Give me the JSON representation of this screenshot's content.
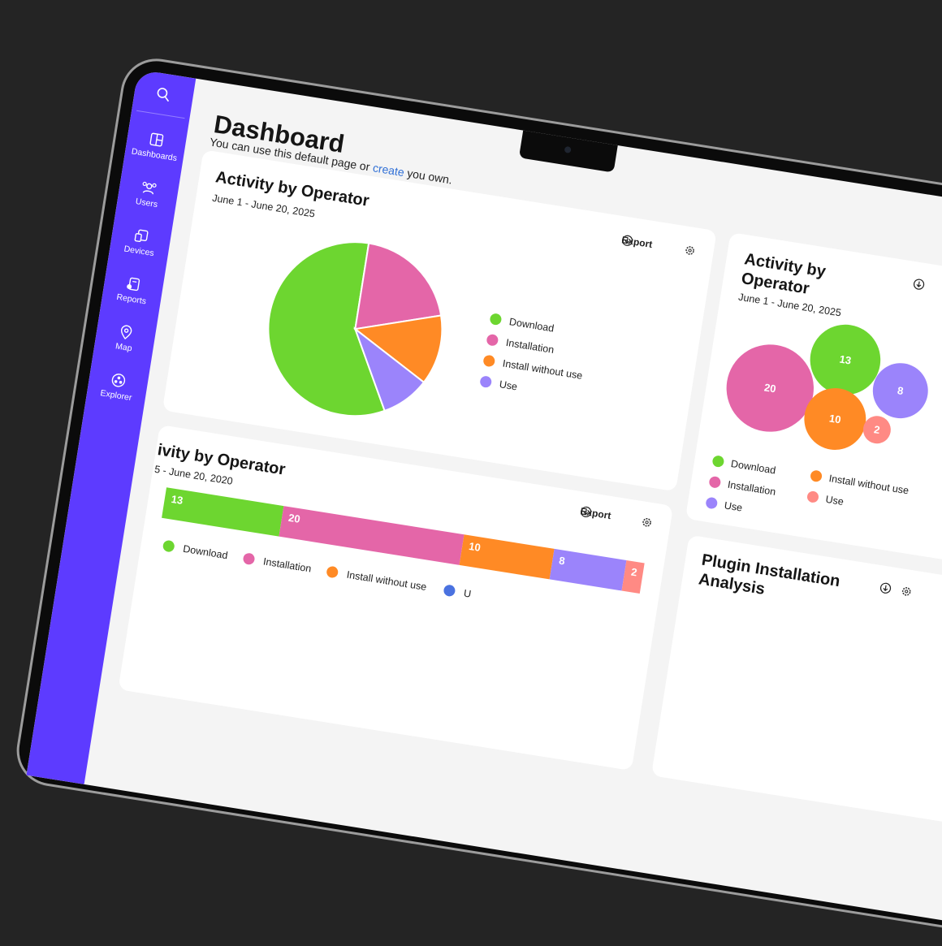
{
  "sidebar": {
    "items": [
      "Dashboards",
      "Users",
      "Devices",
      "Reports",
      "Map",
      "Explorer"
    ]
  },
  "header": {
    "title": "Dashboard",
    "subtitle_before": "You can use this default page or",
    "subtitle_link": "create",
    "subtitle_after": "you own."
  },
  "export": "Export",
  "plugin_card": {
    "title": "Plugin Installation Analysis"
  },
  "chart_data": [
    {
      "type": "pie",
      "title": "Activity by Operator",
      "subtitle": "June  1 - June 20, 2025",
      "categories": [
        "Download",
        "Installation",
        "Install without use",
        "Use"
      ],
      "values": [
        58,
        20,
        13,
        9
      ],
      "colors": [
        "#6dd630",
        "#e466a8",
        "#ff8a25",
        "#9b84fb"
      ]
    },
    {
      "type": "bubble",
      "title": "Activity by Operator",
      "subtitle": "June  1 - June 20, 2025",
      "categories": [
        "Download",
        "Installation",
        "Install without use",
        "Use",
        "Use"
      ],
      "values": [
        13,
        20,
        10,
        8,
        2
      ],
      "colors": [
        "#6dd630",
        "#e466a8",
        "#ff8a25",
        "#9b84fb",
        "#ff8a84"
      ]
    },
    {
      "type": "stacked-bar",
      "title": "ivity by Operator",
      "subtitle": "5 - June 20, 2020",
      "values": [
        13,
        20,
        10,
        8,
        2
      ],
      "colors": [
        "#6dd630",
        "#e466a8",
        "#ff8a25",
        "#9b84fb",
        "#ff8a84"
      ],
      "legend": [
        {
          "name": "Download",
          "color": "#6dd630"
        },
        {
          "name": "Installation",
          "color": "#e466a8"
        },
        {
          "name": "Install without use",
          "color": "#ff8a25"
        },
        {
          "name": "U",
          "color": "#4a72e0"
        }
      ]
    }
  ]
}
